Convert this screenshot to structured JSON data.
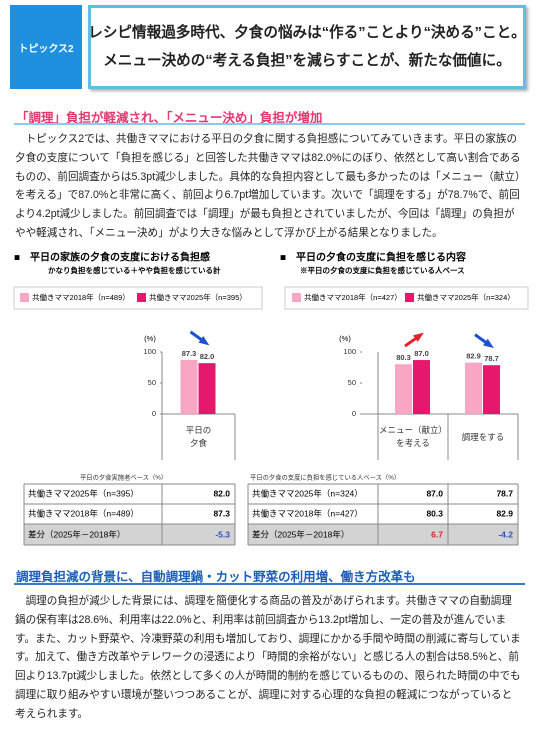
{
  "header": {
    "tag": "トピックス2",
    "title_lines": [
      "レシピ情報過多時代、夕食の悩みは“作る”ことより“決める”こと。",
      "メニュー決めの“考える負担”を減らすことが、新たな価値に。"
    ]
  },
  "sections": [
    {
      "heading": "「調理」負担が軽減され、「メニュー決め」負担が増加",
      "text": "トピックス2では、共働きママにおける平日の夕食に関する負担感についてみていきます。平日の家族の夕食の支度について「負担を感じる」と回答した共働きママは82.0%にのぼり、依然として高い割合であるものの、前回調査からは5.3pt減少しました。具体的な負担内容として最も多かったのは「メニュー（献立）を考える」で87.0%と非常に高く、前回より6.7pt増加しています。次いで「調理をする」が78.7%で、前回より4.2pt減少しました。前回調査では「調理」が最も負担とされていましたが、今回は「調理」の負担がやや軽減され、「メニュー決め」がより大きな悩みとして浮かび上がる結果となりました。"
    },
    {
      "heading": "調理負担減の背景に、自動調理鍋・カット野菜の利用増、働き方改革も",
      "text": "調理の負担が減少した背景には、調理を簡便化する商品の普及があげられます。共働きママの自動調理鍋の保有率は28.6%、利用率は22.0%と、利用率は前回調査から13.2pt増加し、一定の普及が進んでいます。また、カット野菜や、冷凍野菜の利用も増加しており、調理にかかる手間や時間の削減に寄与しています。加えて、働き方改革やテレワークの浸透により「時間的余裕がない」と感じる人の割合は58.5%と、前回より13.7pt減少しました。依然として多くの人が時間的制約を感じているものの、限られた時間の中でも調理に取り組みやすい環境が整いつつあることが、調理に対する心理的な負担の軽減につながっていると考えられます。"
    }
  ],
  "chart_data": [
    {
      "type": "bar",
      "title": "■　平日の家族の夕食の支度における負担感",
      "subtitle": "かなり負担を感じている＋やや負担を感じている計",
      "y_label": "(%)",
      "categories": [
        "平日の夕食"
      ],
      "ylim": [
        0,
        100
      ],
      "yticks": [
        0,
        50,
        100
      ],
      "series": [
        {
          "name": "共働きママ2018年（n=489）",
          "color": "#f7a6c6",
          "values": [
            87.3
          ]
        },
        {
          "name": "共働きママ2025年（n=395）",
          "color": "#e8176e",
          "values": [
            82
          ],
          "value_labels": [
            "82.0"
          ]
        }
      ],
      "table": {
        "note": "平日の夕食実施者ベース（%）",
        "diff_label": "差分（2025年－2018年）",
        "diff": [
          -5.3
        ]
      }
    },
    {
      "type": "bar",
      "title": "■　平日の夕食の支度に負担を感じる内容",
      "subtitle": "※平日の夕食の支度に負担を感じている人ベース",
      "y_label": "(%)",
      "categories": [
        "メニュー（献立）を考える",
        "調理をする"
      ],
      "ylim": [
        0,
        100
      ],
      "yticks": [
        0,
        50,
        100
      ],
      "series": [
        {
          "name": "共働きママ2018年（n=427）",
          "color": "#f7a6c6",
          "values": [
            80.3,
            82.9
          ]
        },
        {
          "name": "共働きママ2025年（n=324）",
          "color": "#e8176e",
          "values": [
            87,
            78.7
          ],
          "value_labels": [
            "87.0",
            "78.7"
          ]
        }
      ],
      "table": {
        "note": "平日の夕食の支度に負担を感じている人ベース（%）",
        "diff_label": "差分（2025年－2018年）",
        "diff": [
          6.7,
          -4.2
        ]
      }
    }
  ]
}
